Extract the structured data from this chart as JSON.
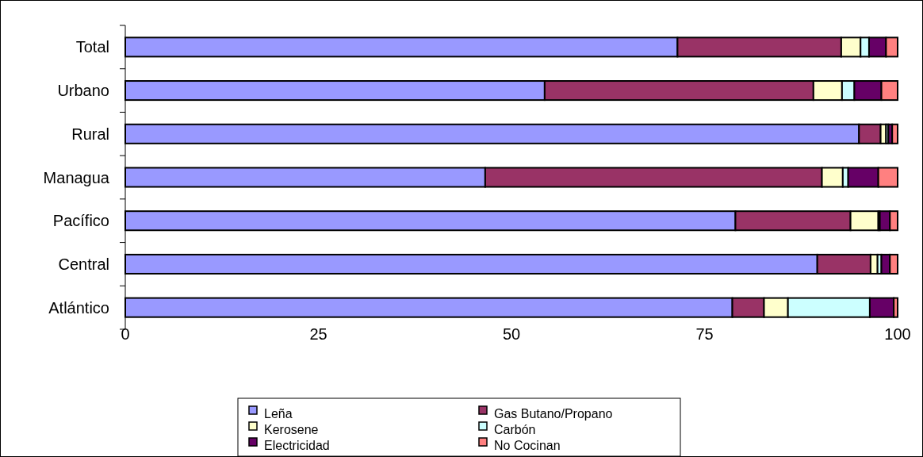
{
  "chart_data": {
    "type": "bar",
    "orientation": "horizontal",
    "stacked": true,
    "categories": [
      "Total",
      "Urbano",
      "Rural",
      "Managua",
      "Pacífico",
      "Central",
      "Atlántico"
    ],
    "series": [
      {
        "name": "Leña",
        "color": "#9999ff",
        "values": [
          71.5,
          54.3,
          95.0,
          46.6,
          79.0,
          89.6,
          78.6
        ]
      },
      {
        "name": "Gas Butano/Propano",
        "color": "#993366",
        "values": [
          21.2,
          34.8,
          2.8,
          43.6,
          14.9,
          6.9,
          4.1
        ]
      },
      {
        "name": "Kerosene",
        "color": "#ffffcc",
        "values": [
          2.5,
          3.7,
          0.7,
          2.7,
          3.6,
          0.9,
          3.1
        ]
      },
      {
        "name": "Carbón",
        "color": "#ccffff",
        "values": [
          1.1,
          1.6,
          0.3,
          0.7,
          0.2,
          0.5,
          10.6
        ]
      },
      {
        "name": "Electricidad",
        "color": "#660066",
        "values": [
          2.2,
          3.5,
          0.5,
          3.9,
          1.3,
          1.1,
          3.1
        ]
      },
      {
        "name": "No Cocinan",
        "color": "#ff8080",
        "values": [
          1.5,
          2.1,
          0.7,
          2.5,
          1.0,
          1.0,
          0.5
        ]
      }
    ],
    "xlim": [
      0,
      100
    ],
    "xticks": [
      0,
      25,
      50,
      75,
      100
    ],
    "legend": "bottom"
  }
}
